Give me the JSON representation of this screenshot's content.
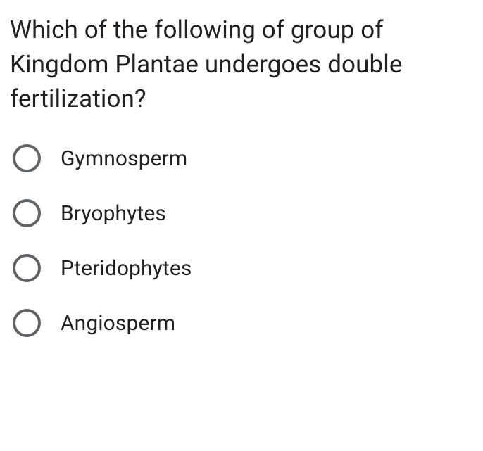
{
  "question": {
    "text": "Which of the following of group of Kingdom Plantae undergoes double fertilization?",
    "text_color": "#202124",
    "fontsize": 35
  },
  "options": [
    {
      "label": "Gymnosperm",
      "selected": false
    },
    {
      "label": "Bryophytes",
      "selected": false
    },
    {
      "label": "Pteridophytes",
      "selected": false
    },
    {
      "label": "Angiosperm",
      "selected": false
    }
  ],
  "styling": {
    "background_color": "#ffffff",
    "radio_border_color": "#606367",
    "radio_border_width": 4,
    "radio_size": 40,
    "option_fontsize": 30,
    "option_text_color": "#202124",
    "option_gap": 38
  }
}
